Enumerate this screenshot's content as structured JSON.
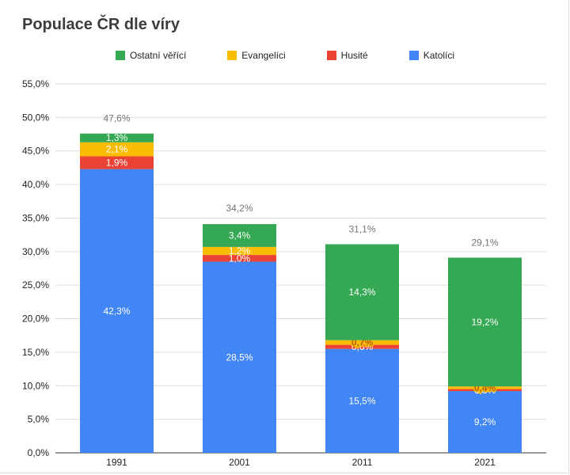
{
  "chart_data": {
    "type": "bar",
    "stacked": true,
    "title": "Populace ČR dle víry",
    "xlabel": "",
    "ylabel": "",
    "categories": [
      "1991",
      "2001",
      "2011",
      "2021"
    ],
    "ylim": [
      0,
      55
    ],
    "yticks": [
      "0,0%",
      "5,0%",
      "10,0%",
      "15,0%",
      "20,0%",
      "25,0%",
      "30,0%",
      "35,0%",
      "40,0%",
      "45,0%",
      "50,0%",
      "55,0%"
    ],
    "legend_position": "top",
    "grid": true,
    "series": [
      {
        "name": "Katolíci",
        "color": "#4285f4",
        "values": [
          42.3,
          28.5,
          15.5,
          9.2
        ],
        "labels": [
          "42,3%",
          "28,5%",
          "15,5%",
          "9,2%"
        ]
      },
      {
        "name": "Husité",
        "color": "#ea4335",
        "values": [
          1.9,
          1.0,
          0.6,
          0.3
        ],
        "labels": [
          "1,9%",
          "1,0%",
          "0,6%",
          "0,3%"
        ]
      },
      {
        "name": "Evangelíci",
        "color": "#fbbc04",
        "values": [
          2.1,
          1.2,
          0.7,
          0.4
        ],
        "labels": [
          "2,1%",
          "1,2%",
          "0,7%",
          "0,4%"
        ]
      },
      {
        "name": "Ostatní věřící",
        "color": "#34a853",
        "values": [
          1.3,
          3.4,
          14.3,
          19.2
        ],
        "labels": [
          "1,3%",
          "3,4%",
          "14,3%",
          "19,2%"
        ]
      }
    ],
    "totals": [
      "47,6%",
      "34,2%",
      "31,1%",
      "29,1%"
    ],
    "total_values": [
      47.6,
      34.2,
      31.1,
      29.1
    ]
  }
}
